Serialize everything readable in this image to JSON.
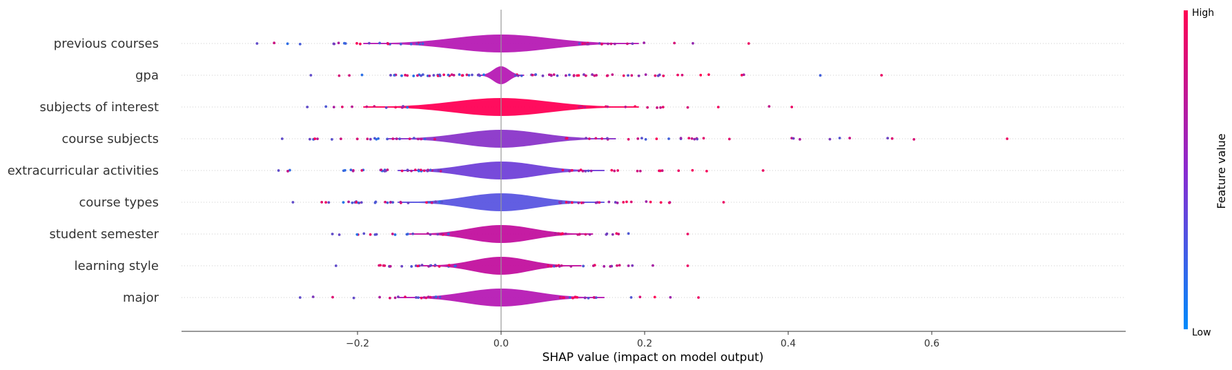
{
  "chart_data": {
    "type": "violin-summary",
    "xlabel": "SHAP value (impact on model output)",
    "x_ticks": [
      -0.2,
      0.0,
      0.2,
      0.4,
      0.6
    ],
    "x_tick_labels": [
      "−0.2",
      "0.0",
      "0.2",
      "0.4",
      "0.6"
    ],
    "xlim": [
      -0.39,
      0.76
    ],
    "grid": "horizontal dotted per feature",
    "colorbar": {
      "title": "Feature value",
      "high_label": "High",
      "low_label": "Low",
      "low_color": "#008bfb",
      "high_color": "#ff0052",
      "mid_color": "#a020a8"
    },
    "features": [
      {
        "name": "previous courses",
        "min": -0.34,
        "max": 0.345,
        "core_width": 0.12,
        "core_color": "#b61ab4",
        "low_left": 0.6,
        "high_right": 0.6
      },
      {
        "name": "gpa",
        "min": -0.265,
        "max": 0.53,
        "core_width": 0.02,
        "core_color": "#b61ab4",
        "low_left": 0.5,
        "high_right": 0.6
      },
      {
        "name": "subjects of interest",
        "min": -0.27,
        "max": 0.405,
        "core_width": 0.12,
        "core_color": "#ff0055",
        "low_left": 0.3,
        "high_right": 0.7
      },
      {
        "name": "course subjects",
        "min": -0.305,
        "max": 0.705,
        "core_width": 0.1,
        "core_color": "#8a35c9",
        "low_left": 0.55,
        "high_right": 0.55
      },
      {
        "name": "extracurricular activities",
        "min": -0.31,
        "max": 0.365,
        "core_width": 0.09,
        "core_color": "#7040d8",
        "low_left": 0.6,
        "high_right": 0.7
      },
      {
        "name": "course types",
        "min": -0.29,
        "max": 0.31,
        "core_width": 0.09,
        "core_color": "#5a55e0",
        "low_left": 0.6,
        "high_right": 0.65
      },
      {
        "name": "student semester",
        "min": -0.235,
        "max": 0.26,
        "core_width": 0.08,
        "core_color": "#c2109e",
        "low_left": 0.6,
        "high_right": 0.6
      },
      {
        "name": "learning style",
        "min": -0.23,
        "max": 0.26,
        "core_width": 0.07,
        "core_color": "#c2109e",
        "low_left": 0.55,
        "high_right": 0.6
      },
      {
        "name": "major",
        "min": -0.28,
        "max": 0.275,
        "core_width": 0.09,
        "core_color": "#b61ab4",
        "low_left": 0.5,
        "high_right": 0.6
      }
    ]
  }
}
